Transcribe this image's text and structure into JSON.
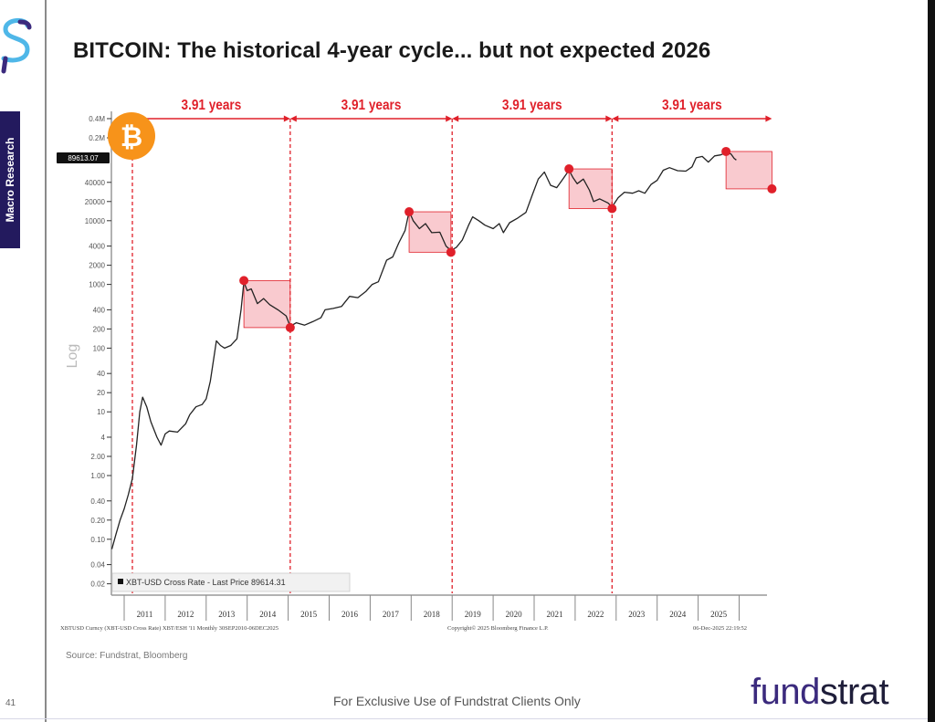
{
  "sidebar": {
    "tag": "Macro Research",
    "page_number": "41"
  },
  "title": "BITCOIN: The historical 4-year cycle... but not expected 2026",
  "footer": {
    "source": "Source: Fundstrat, Bloomberg",
    "disclaimer": "For Exclusive Use of Fundstrat Clients Only",
    "brand_a": "fund",
    "brand_b": "strat"
  },
  "colors": {
    "line": "#222222",
    "accent_red": "#e0202a",
    "box_fill": "#f7b8bf",
    "bitcoin": "#f7931a",
    "brand": "#3b2a7d"
  },
  "chart_data": {
    "type": "line",
    "title": "BITCOIN: The historical 4-year cycle... but not expected 2026",
    "ylabel": "Log",
    "yscale": "log",
    "ylim": [
      0.02,
      400000
    ],
    "xlim": [
      2010.7,
      2026.9
    ],
    "y_ticks": [
      {
        "v": 400000,
        "label": "0.4M"
      },
      {
        "v": 200000,
        "label": "0.2M"
      },
      {
        "v": 40000,
        "label": "40000"
      },
      {
        "v": 20000,
        "label": "20000"
      },
      {
        "v": 10000,
        "label": "10000"
      },
      {
        "v": 4000,
        "label": "4000"
      },
      {
        "v": 2000,
        "label": "2000"
      },
      {
        "v": 1000,
        "label": "1000"
      },
      {
        "v": 400,
        "label": "400"
      },
      {
        "v": 200,
        "label": "200"
      },
      {
        "v": 100,
        "label": "100"
      },
      {
        "v": 40,
        "label": "40"
      },
      {
        "v": 20,
        "label": "20"
      },
      {
        "v": 10,
        "label": "10"
      },
      {
        "v": 4,
        "label": "4"
      },
      {
        "v": 2,
        "label": "2.00"
      },
      {
        "v": 1,
        "label": "1.00"
      },
      {
        "v": 0.4,
        "label": "0.40"
      },
      {
        "v": 0.2,
        "label": "0.20"
      },
      {
        "v": 0.1,
        "label": "0.10"
      },
      {
        "v": 0.04,
        "label": "0.04"
      },
      {
        "v": 0.02,
        "label": "0.02"
      }
    ],
    "x_ticks": [
      "2011",
      "2012",
      "2013",
      "2014",
      "2015",
      "2016",
      "2017",
      "2018",
      "2019",
      "2020",
      "2021",
      "2022",
      "2023",
      "2024",
      "2025"
    ],
    "last_price_badge": "89613.07",
    "legend": "XBT-USD Cross Rate - Last Price 89614.31",
    "series": [
      {
        "name": "XBT-USD Cross Rate",
        "points": [
          [
            2010.7,
            0.07
          ],
          [
            2010.8,
            0.12
          ],
          [
            2010.9,
            0.2
          ],
          [
            2011.0,
            0.3
          ],
          [
            2011.1,
            0.5
          ],
          [
            2011.2,
            0.9
          ],
          [
            2011.3,
            3
          ],
          [
            2011.38,
            10
          ],
          [
            2011.45,
            17
          ],
          [
            2011.55,
            12
          ],
          [
            2011.65,
            7
          ],
          [
            2011.8,
            4
          ],
          [
            2011.9,
            3
          ],
          [
            2012.0,
            4.5
          ],
          [
            2012.1,
            5
          ],
          [
            2012.3,
            4.8
          ],
          [
            2012.5,
            6.5
          ],
          [
            2012.6,
            9
          ],
          [
            2012.75,
            12
          ],
          [
            2012.9,
            13
          ],
          [
            2013.0,
            16
          ],
          [
            2013.1,
            30
          ],
          [
            2013.25,
            130
          ],
          [
            2013.35,
            110
          ],
          [
            2013.45,
            100
          ],
          [
            2013.6,
            110
          ],
          [
            2013.75,
            140
          ],
          [
            2013.85,
            400
          ],
          [
            2013.92,
            1100
          ],
          [
            2014.0,
            800
          ],
          [
            2014.1,
            850
          ],
          [
            2014.25,
            500
          ],
          [
            2014.4,
            600
          ],
          [
            2014.55,
            480
          ],
          [
            2014.75,
            400
          ],
          [
            2014.95,
            320
          ],
          [
            2015.05,
            220
          ],
          [
            2015.2,
            250
          ],
          [
            2015.4,
            230
          ],
          [
            2015.6,
            260
          ],
          [
            2015.8,
            300
          ],
          [
            2015.9,
            400
          ],
          [
            2016.1,
            420
          ],
          [
            2016.3,
            450
          ],
          [
            2016.5,
            650
          ],
          [
            2016.7,
            620
          ],
          [
            2016.9,
            780
          ],
          [
            2017.05,
            1000
          ],
          [
            2017.2,
            1100
          ],
          [
            2017.4,
            2400
          ],
          [
            2017.55,
            2700
          ],
          [
            2017.7,
            4500
          ],
          [
            2017.85,
            7000
          ],
          [
            2017.95,
            14000
          ],
          [
            2018.05,
            10000
          ],
          [
            2018.2,
            7500
          ],
          [
            2018.35,
            9000
          ],
          [
            2018.5,
            6500
          ],
          [
            2018.7,
            6600
          ],
          [
            2018.85,
            4000
          ],
          [
            2018.97,
            3400
          ],
          [
            2019.1,
            3800
          ],
          [
            2019.25,
            5000
          ],
          [
            2019.4,
            8500
          ],
          [
            2019.5,
            11500
          ],
          [
            2019.65,
            10000
          ],
          [
            2019.8,
            8500
          ],
          [
            2020.0,
            7500
          ],
          [
            2020.15,
            9000
          ],
          [
            2020.25,
            6500
          ],
          [
            2020.4,
            9300
          ],
          [
            2020.6,
            11000
          ],
          [
            2020.8,
            13500
          ],
          [
            2020.95,
            25000
          ],
          [
            2021.1,
            45000
          ],
          [
            2021.25,
            58000
          ],
          [
            2021.4,
            36000
          ],
          [
            2021.55,
            33000
          ],
          [
            2021.7,
            45000
          ],
          [
            2021.85,
            62000
          ],
          [
            2021.95,
            47000
          ],
          [
            2022.05,
            38000
          ],
          [
            2022.2,
            45000
          ],
          [
            2022.35,
            30000
          ],
          [
            2022.45,
            20000
          ],
          [
            2022.6,
            22000
          ],
          [
            2022.8,
            19000
          ],
          [
            2022.9,
            16500
          ],
          [
            2023.05,
            23000
          ],
          [
            2023.2,
            28000
          ],
          [
            2023.4,
            27000
          ],
          [
            2023.55,
            29500
          ],
          [
            2023.7,
            27000
          ],
          [
            2023.85,
            37000
          ],
          [
            2024.0,
            43000
          ],
          [
            2024.15,
            62000
          ],
          [
            2024.3,
            68000
          ],
          [
            2024.5,
            61000
          ],
          [
            2024.7,
            60000
          ],
          [
            2024.85,
            70000
          ],
          [
            2024.95,
            97000
          ],
          [
            2025.1,
            102000
          ],
          [
            2025.25,
            83000
          ],
          [
            2025.4,
            104000
          ],
          [
            2025.55,
            108000
          ],
          [
            2025.7,
            118000
          ],
          [
            2025.8,
            112000
          ],
          [
            2025.88,
            95000
          ],
          [
            2025.93,
            89613
          ]
        ]
      }
    ],
    "cycle_lines": [
      2011.2,
      2015.05,
      2019.0,
      2022.9
    ],
    "cycle_end": 2026.8,
    "cycle_labels": [
      "3.91 years",
      "3.91 years",
      "3.91 years",
      "3.91 years"
    ],
    "drawdown_boxes": [
      {
        "peak": [
          2013.92,
          1150
        ],
        "trough": [
          2015.05,
          210
        ]
      },
      {
        "peak": [
          2017.95,
          13800
        ],
        "trough": [
          2018.97,
          3200
        ]
      },
      {
        "peak": [
          2021.85,
          65000
        ],
        "trough": [
          2022.9,
          15500
        ]
      },
      {
        "peak": [
          2025.68,
          122000
        ],
        "trough": [
          2026.8,
          31600
        ]
      }
    ],
    "bloomberg_footer": {
      "ticker": "XBTUSD Curncy (XBT-USD Cross Rate) XBT/ESH '11 Monthly 30SEP2010-06DEC2025",
      "copyright": "Copyright© 2025 Bloomberg Finance L.P.",
      "timestamp": "06-Dec-2025 22:19:52"
    }
  }
}
